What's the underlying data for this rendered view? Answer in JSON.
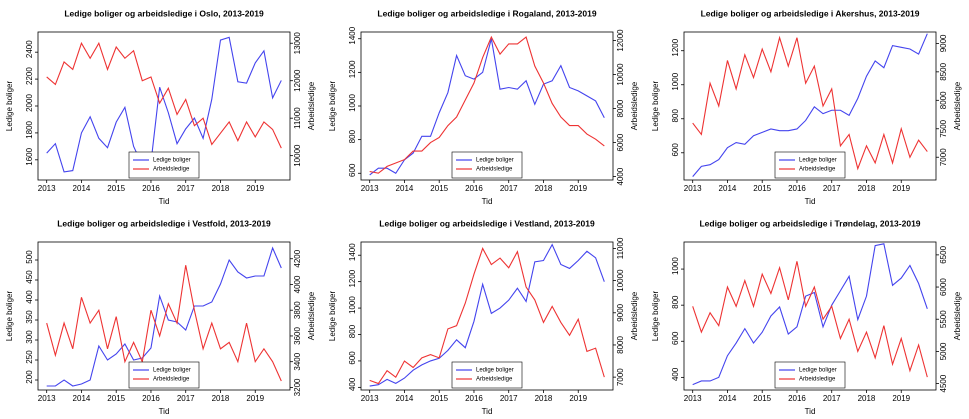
{
  "chart_data": [
    {
      "type": "line",
      "title": "Ledige boliger og arbeidsledige i Oslo, 2013-2019",
      "x_label": "Tid",
      "y_label": "Ledige boliger",
      "y2_label": "Arbeidsledige",
      "legend": "lower center",
      "x": [
        2013,
        2013.25,
        2013.5,
        2013.75,
        2014,
        2014.25,
        2014.5,
        2014.75,
        2015,
        2015.25,
        2015.5,
        2015.75,
        2016,
        2016.25,
        2016.5,
        2016.75,
        2017,
        2017.25,
        2017.5,
        2017.75,
        2018,
        2018.25,
        2018.5,
        2018.75,
        2019,
        2019.25,
        2019.5,
        2019.75
      ],
      "xlim": [
        2012.75,
        2020
      ],
      "xticks": [
        2013,
        2014,
        2015,
        2016,
        2017,
        2018,
        2019
      ],
      "ylim": [
        1450,
        2550
      ],
      "yticks": [
        1600,
        1800,
        2000,
        2200,
        2400
      ],
      "y2lim": [
        9350,
        13300
      ],
      "y2ticks": [
        10000,
        11000,
        12000,
        13000
      ],
      "series": [
        {
          "name": "Ledige boliger",
          "color": "#4444ee",
          "values": [
            1650,
            1720,
            1510,
            1520,
            1800,
            1920,
            1760,
            1690,
            1880,
            1990,
            1700,
            1560,
            1580,
            2140,
            1950,
            1720,
            1830,
            1910,
            1760,
            2050,
            2490,
            2510,
            2180,
            2170,
            2320,
            2410,
            2060,
            2190
          ]
        },
        {
          "name": "Arbeidsledige",
          "color": "#ee3333",
          "axis": "y2",
          "values": [
            12100,
            11900,
            12500,
            12300,
            13000,
            12600,
            13000,
            12300,
            12900,
            12600,
            12800,
            12000,
            12100,
            11400,
            11800,
            11100,
            11500,
            10800,
            11000,
            10300,
            10600,
            10900,
            10400,
            10900,
            10500,
            10900,
            10700,
            10200
          ]
        }
      ]
    },
    {
      "type": "line",
      "title": "Ledige boliger og arbeidsledige i Rogaland, 2013-2019",
      "x_label": "Tid",
      "y_label": "Ledige boliger",
      "y2_label": "Arbeidsledige",
      "legend": "lower center",
      "x": [
        2013,
        2013.25,
        2013.5,
        2013.75,
        2014,
        2014.25,
        2014.5,
        2014.75,
        2015,
        2015.25,
        2015.5,
        2015.75,
        2016,
        2016.25,
        2016.5,
        2016.75,
        2017,
        2017.25,
        2017.5,
        2017.75,
        2018,
        2018.25,
        2018.5,
        2018.75,
        2019,
        2019.25,
        2019.5,
        2019.75
      ],
      "xlim": [
        2012.75,
        2020
      ],
      "xticks": [
        2013,
        2014,
        2015,
        2016,
        2017,
        2018,
        2019
      ],
      "ylim": [
        560,
        1440
      ],
      "yticks": [
        600,
        800,
        1000,
        1200,
        1400
      ],
      "y2lim": [
        3800,
        12500
      ],
      "y2ticks": [
        4000,
        6000,
        8000,
        10000,
        12000
      ],
      "series": [
        {
          "name": "Ledige boliger",
          "color": "#4444ee",
          "values": [
            590,
            630,
            630,
            600,
            680,
            720,
            820,
            820,
            960,
            1080,
            1300,
            1180,
            1160,
            1200,
            1400,
            1100,
            1110,
            1100,
            1150,
            1010,
            1130,
            1150,
            1240,
            1110,
            1090,
            1060,
            1030,
            930
          ]
        },
        {
          "name": "Arbeidsledige",
          "color": "#ee3333",
          "axis": "y2",
          "values": [
            4300,
            4200,
            4600,
            4800,
            5000,
            5500,
            5500,
            6000,
            6300,
            7000,
            7500,
            8500,
            9500,
            11000,
            12200,
            11200,
            11800,
            11800,
            12200,
            10500,
            9500,
            8300,
            7500,
            7000,
            7000,
            6500,
            6200,
            5800
          ]
        }
      ]
    },
    {
      "type": "line",
      "title": "Ledige boliger og arbeidsledige i Akershus, 2013-2019",
      "x_label": "Tid",
      "y_label": "Ledige boliger",
      "y2_label": "Arbeidsledige",
      "legend": "lower center",
      "x": [
        2013,
        2013.25,
        2013.5,
        2013.75,
        2014,
        2014.25,
        2014.5,
        2014.75,
        2015,
        2015.25,
        2015.5,
        2015.75,
        2016,
        2016.25,
        2016.5,
        2016.75,
        2017,
        2017.25,
        2017.5,
        2017.75,
        2018,
        2018.25,
        2018.5,
        2018.75,
        2019,
        2019.25,
        2019.5,
        2019.75
      ],
      "xlim": [
        2012.75,
        2020
      ],
      "xticks": [
        2013,
        2014,
        2015,
        2016,
        2017,
        2018,
        2019
      ],
      "ylim": [
        440,
        1310
      ],
      "yticks": [
        600,
        800,
        1000,
        1200
      ],
      "y2lim": [
        6600,
        9200
      ],
      "y2ticks": [
        7000,
        7500,
        8000,
        8500,
        9000
      ],
      "series": [
        {
          "name": "Ledige boliger",
          "color": "#4444ee",
          "values": [
            460,
            520,
            530,
            560,
            630,
            660,
            650,
            700,
            720,
            740,
            730,
            730,
            740,
            790,
            870,
            830,
            850,
            850,
            820,
            920,
            1050,
            1140,
            1100,
            1230,
            1220,
            1210,
            1180,
            1300
          ]
        },
        {
          "name": "Arbeidsledige",
          "color": "#ee3333",
          "axis": "y2",
          "values": [
            7600,
            7400,
            8300,
            7900,
            8700,
            8200,
            8800,
            8400,
            8900,
            8500,
            9100,
            8600,
            9100,
            8300,
            8600,
            7900,
            8200,
            7200,
            7400,
            6800,
            7200,
            6900,
            7400,
            6900,
            7500,
            7000,
            7300,
            7100
          ]
        }
      ]
    },
    {
      "type": "line",
      "title": "Ledige boliger og arbeidsledige i Vestfold, 2013-2019",
      "x_label": "Tid",
      "y_label": "Ledige boliger",
      "y2_label": "Arbeidsledige",
      "legend": "lower center",
      "x": [
        2013,
        2013.25,
        2013.5,
        2013.75,
        2014,
        2014.25,
        2014.5,
        2014.75,
        2015,
        2015.25,
        2015.5,
        2015.75,
        2016,
        2016.25,
        2016.5,
        2016.75,
        2017,
        2017.25,
        2017.5,
        2017.75,
        2018,
        2018.25,
        2018.5,
        2018.75,
        2019,
        2019.25,
        2019.5,
        2019.75
      ],
      "xlim": [
        2012.75,
        2020
      ],
      "xticks": [
        2013,
        2014,
        2015,
        2016,
        2017,
        2018,
        2019
      ],
      "ylim": [
        175,
        545
      ],
      "yticks": [
        200,
        250,
        300,
        350,
        400,
        450,
        500
      ],
      "y2lim": [
        3180,
        4330
      ],
      "y2ticks": [
        3200,
        3400,
        3600,
        3800,
        4000,
        4200
      ],
      "series": [
        {
          "name": "Ledige boliger",
          "color": "#4444ee",
          "values": [
            185,
            185,
            200,
            185,
            190,
            200,
            285,
            250,
            265,
            290,
            250,
            255,
            280,
            410,
            350,
            345,
            325,
            385,
            385,
            395,
            440,
            500,
            470,
            455,
            460,
            460,
            530,
            480
          ]
        },
        {
          "name": "Arbeidsledige",
          "color": "#ee3333",
          "axis": "y2",
          "values": [
            3700,
            3450,
            3700,
            3500,
            3900,
            3700,
            3800,
            3500,
            3750,
            3400,
            3550,
            3400,
            3800,
            3600,
            3850,
            3700,
            4150,
            3800,
            3500,
            3700,
            3500,
            3550,
            3400,
            3700,
            3400,
            3500,
            3400,
            3250
          ]
        }
      ]
    },
    {
      "type": "line",
      "title": "Ledige boliger og arbeidsledige i Vestland, 2013-2019",
      "x_label": "Tid",
      "y_label": "Ledige boliger",
      "y2_label": "Arbeidsledige",
      "legend": "lower center",
      "x": [
        2013,
        2013.25,
        2013.5,
        2013.75,
        2014,
        2014.25,
        2014.5,
        2014.75,
        2015,
        2015.25,
        2015.5,
        2015.75,
        2016,
        2016.25,
        2016.5,
        2016.75,
        2017,
        2017.25,
        2017.5,
        2017.75,
        2018,
        2018.25,
        2018.5,
        2018.75,
        2019,
        2019.25,
        2019.5,
        2019.75
      ],
      "xlim": [
        2012.75,
        2020
      ],
      "xticks": [
        2013,
        2014,
        2015,
        2016,
        2017,
        2018,
        2019
      ],
      "ylim": [
        380,
        1500
      ],
      "yticks": [
        400,
        600,
        800,
        1000,
        1200,
        1400
      ],
      "y2lim": [
        6600,
        11200
      ],
      "y2ticks": [
        7000,
        8000,
        9000,
        10000,
        11000
      ],
      "series": [
        {
          "name": "Ledige boliger",
          "color": "#4444ee",
          "values": [
            410,
            420,
            460,
            430,
            470,
            530,
            570,
            600,
            620,
            680,
            760,
            700,
            900,
            1180,
            960,
            1000,
            1060,
            1150,
            1050,
            1350,
            1360,
            1480,
            1330,
            1300,
            1360,
            1430,
            1380,
            1200
          ]
        },
        {
          "name": "Arbeidsledige",
          "color": "#ee3333",
          "axis": "y2",
          "values": [
            6900,
            6800,
            7200,
            7000,
            7500,
            7300,
            7600,
            7700,
            7600,
            8500,
            8600,
            9300,
            10200,
            11000,
            10500,
            10700,
            10400,
            10900,
            9800,
            9400,
            8700,
            9200,
            8700,
            8300,
            8800,
            7800,
            7900,
            7000
          ]
        }
      ]
    },
    {
      "type": "line",
      "title": "Ledige boliger og arbeidsledige i Trøndelag, 2013-2019",
      "x_label": "Tid",
      "y_label": "Ledige boliger",
      "y2_label": "Arbeidsledige",
      "legend": "lower center",
      "x": [
        2013,
        2013.25,
        2013.5,
        2013.75,
        2014,
        2014.25,
        2014.5,
        2014.75,
        2015,
        2015.25,
        2015.5,
        2015.75,
        2016,
        2016.25,
        2016.5,
        2016.75,
        2017,
        2017.25,
        2017.5,
        2017.75,
        2018,
        2018.25,
        2018.5,
        2018.75,
        2019,
        2019.25,
        2019.5,
        2019.75
      ],
      "xlim": [
        2012.75,
        2020
      ],
      "xticks": [
        2013,
        2014,
        2015,
        2016,
        2017,
        2018,
        2019
      ],
      "ylim": [
        330,
        1150
      ],
      "yticks": [
        400,
        600,
        800,
        1000
      ],
      "y2lim": [
        4400,
        6700
      ],
      "y2ticks": [
        4500,
        5000,
        5500,
        6000,
        6500
      ],
      "series": [
        {
          "name": "Ledige boliger",
          "color": "#4444ee",
          "values": [
            360,
            380,
            380,
            400,
            520,
            590,
            670,
            590,
            650,
            740,
            790,
            640,
            680,
            850,
            870,
            680,
            800,
            880,
            960,
            720,
            850,
            1130,
            1140,
            910,
            950,
            1020,
            920,
            780
          ]
        },
        {
          "name": "Arbeidsledige",
          "color": "#ee3333",
          "axis": "y2",
          "values": [
            5700,
            5300,
            5600,
            5400,
            6000,
            5700,
            6100,
            5700,
            6200,
            5900,
            6300,
            5800,
            6400,
            5700,
            6000,
            5500,
            5700,
            5200,
            5500,
            5000,
            5300,
            4900,
            5400,
            4800,
            5200,
            4700,
            5100,
            4600
          ]
        }
      ]
    }
  ]
}
